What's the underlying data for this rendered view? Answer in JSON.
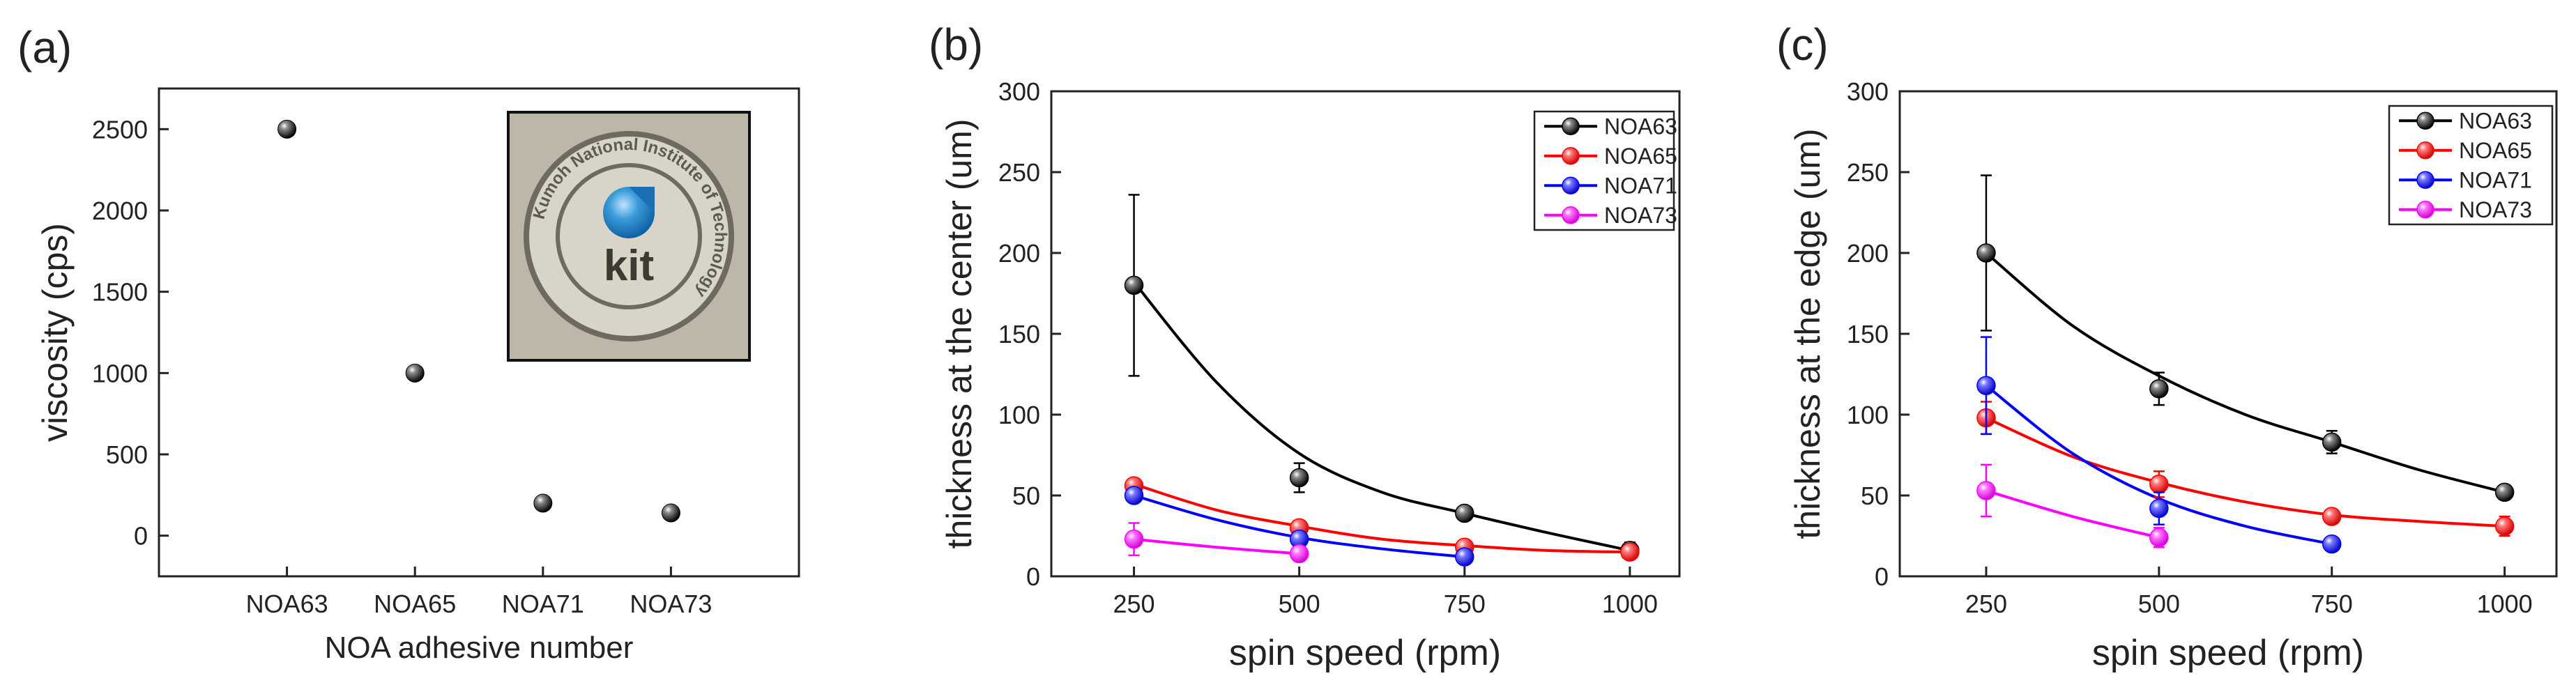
{
  "chart_data": [
    {
      "type": "scatter",
      "panel_label": "(a)",
      "xlabel": "NOA adhesive number",
      "ylabel": "viscosity (cps)",
      "categories": [
        "NOA63",
        "NOA65",
        "NOA71",
        "NOA73"
      ],
      "ylim": [
        -250,
        2750
      ],
      "yticks": [
        0,
        500,
        1000,
        1500,
        2000,
        2500
      ],
      "grid": false,
      "series": [
        {
          "name": "viscosity",
          "values": [
            2500,
            1000,
            200,
            140
          ]
        }
      ],
      "inset": {
        "type": "logo",
        "text": "kit",
        "ring_text": "Kumoh National Institute of Technology"
      },
      "colors": {
        "marker": "#1a1a1a"
      }
    },
    {
      "type": "line",
      "panel_label": "(b)",
      "xlabel": "spin speed (rpm)",
      "ylabel": "thickness at the center (um)",
      "xlim": [
        125,
        1075
      ],
      "ylim": [
        0,
        300
      ],
      "xticks": [
        250,
        500,
        750,
        1000
      ],
      "yticks": [
        0,
        50,
        100,
        150,
        200,
        250,
        300
      ],
      "grid": false,
      "legend_position": "top-right",
      "series": [
        {
          "name": "NOA63",
          "color": "#000000",
          "x": [
            250,
            500,
            750,
            1000
          ],
          "y": [
            180,
            61,
            39,
            16
          ],
          "err": [
            56,
            9,
            3,
            5
          ],
          "fit_x": [
            250,
            375,
            500,
            625,
            750,
            875,
            1000
          ],
          "fit_y": [
            182,
            120,
            76,
            52,
            39,
            27,
            16
          ]
        },
        {
          "name": "NOA65",
          "color": "#ff0000",
          "x": [
            250,
            500,
            750,
            1000
          ],
          "y": [
            56,
            30,
            18,
            15
          ],
          "err": [
            3,
            3,
            2,
            2
          ],
          "fit_x": [
            250,
            375,
            500,
            625,
            750,
            875,
            1000
          ],
          "fit_y": [
            57,
            41,
            31,
            23,
            19,
            16,
            15
          ]
        },
        {
          "name": "NOA71",
          "color": "#0000ff",
          "x": [
            250,
            500,
            750
          ],
          "y": [
            50,
            23,
            12
          ],
          "err": [
            2,
            2,
            2
          ],
          "fit_x": [
            250,
            375,
            500,
            625,
            750
          ],
          "fit_y": [
            50,
            35,
            24,
            17,
            12
          ]
        },
        {
          "name": "NOA73",
          "color": "#ff00ff",
          "x": [
            250,
            500
          ],
          "y": [
            23,
            14
          ],
          "err": [
            10,
            4
          ],
          "fit_x": [
            250,
            375,
            500
          ],
          "fit_y": [
            23,
            18,
            14
          ]
        }
      ]
    },
    {
      "type": "line",
      "panel_label": "(c)",
      "xlabel": "spin speed (rpm)",
      "ylabel": "thickness at the edge (um)",
      "xlim": [
        125,
        1075
      ],
      "ylim": [
        0,
        300
      ],
      "xticks": [
        250,
        500,
        750,
        1000
      ],
      "yticks": [
        0,
        50,
        100,
        150,
        200,
        250,
        300
      ],
      "grid": false,
      "legend_position": "top-right",
      "series": [
        {
          "name": "NOA63",
          "color": "#000000",
          "x": [
            250,
            500,
            750,
            1000
          ],
          "y": [
            200,
            116,
            83,
            52
          ],
          "err": [
            48,
            10,
            7,
            4
          ],
          "fit_x": [
            250,
            375,
            500,
            625,
            750,
            875,
            1000
          ],
          "fit_y": [
            200,
            155,
            124,
            100,
            83,
            66,
            52
          ]
        },
        {
          "name": "NOA65",
          "color": "#ff0000",
          "x": [
            250,
            500,
            750,
            1000
          ],
          "y": [
            98,
            57,
            37,
            31
          ],
          "err": [
            10,
            8,
            4,
            6
          ],
          "fit_x": [
            250,
            375,
            500,
            625,
            750,
            875,
            1000
          ],
          "fit_y": [
            98,
            74,
            58,
            46,
            38,
            34,
            31
          ]
        },
        {
          "name": "NOA71",
          "color": "#0000ff",
          "x": [
            250,
            500,
            750
          ],
          "y": [
            118,
            42,
            20
          ],
          "err": [
            30,
            10,
            2
          ],
          "fit_x": [
            250,
            375,
            500,
            625,
            750
          ],
          "fit_y": [
            118,
            76,
            48,
            31,
            20
          ]
        },
        {
          "name": "NOA73",
          "color": "#ff00ff",
          "x": [
            250,
            500
          ],
          "y": [
            53,
            24
          ],
          "err": [
            16,
            6
          ],
          "fit_x": [
            250,
            375,
            500
          ],
          "fit_y": [
            53,
            37,
            24
          ]
        }
      ]
    }
  ]
}
